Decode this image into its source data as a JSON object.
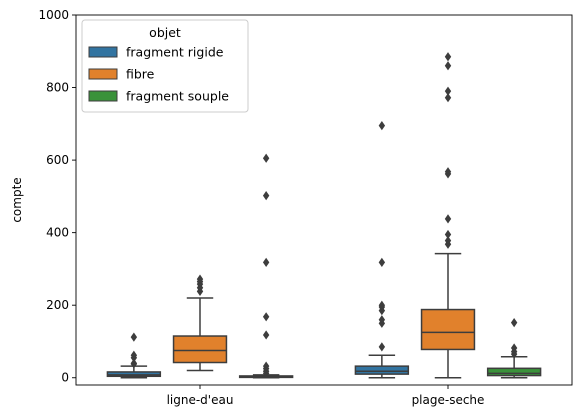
{
  "chart_data": {
    "type": "boxplot",
    "categories": [
      "ligne-d'eau",
      "plage-seche"
    ],
    "xlabel": "",
    "ylabel": "compte",
    "ylim": [
      0,
      1000
    ],
    "yticks": [
      0,
      200,
      400,
      600,
      800,
      1000
    ],
    "grid": false,
    "legend": {
      "title": "objet",
      "placement": "upper-left"
    },
    "series": [
      {
        "name": "fragment rigide",
        "color": "#3274a1",
        "boxes": [
          {
            "whisker_low": 0,
            "q1": 4,
            "median": 8,
            "q3": 16,
            "whisker_high": 32,
            "outliers": [
              38,
              40,
              55,
              62,
              112
            ]
          },
          {
            "whisker_low": 0,
            "q1": 10,
            "median": 18,
            "q3": 32,
            "whisker_high": 62,
            "outliers": [
              85,
              150,
              160,
              185,
              195,
              200,
              318,
              695
            ]
          }
        ]
      },
      {
        "name": "fibre",
        "color": "#e1812c",
        "boxes": [
          {
            "whisker_low": 20,
            "q1": 42,
            "median": 75,
            "q3": 115,
            "whisker_high": 220,
            "outliers": [
              238,
              248,
              258,
              265,
              272
            ]
          },
          {
            "whisker_low": 0,
            "q1": 78,
            "median": 125,
            "q3": 188,
            "whisker_high": 342,
            "outliers": [
              368,
              378,
              395,
              438,
              562,
              568,
              772,
              790,
              860,
              885
            ]
          }
        ]
      },
      {
        "name": "fragment souple",
        "color": "#3a923a",
        "boxes": [
          {
            "whisker_low": 0,
            "q1": 1,
            "median": 2,
            "q3": 5,
            "whisker_high": 8,
            "outliers": [
              12,
              18,
              25,
              32,
              118,
              168,
              318,
              502,
              605
            ]
          },
          {
            "whisker_low": 0,
            "q1": 6,
            "median": 12,
            "q3": 26,
            "whisker_high": 58,
            "outliers": [
              65,
              72,
              82,
              152
            ]
          }
        ]
      }
    ]
  }
}
